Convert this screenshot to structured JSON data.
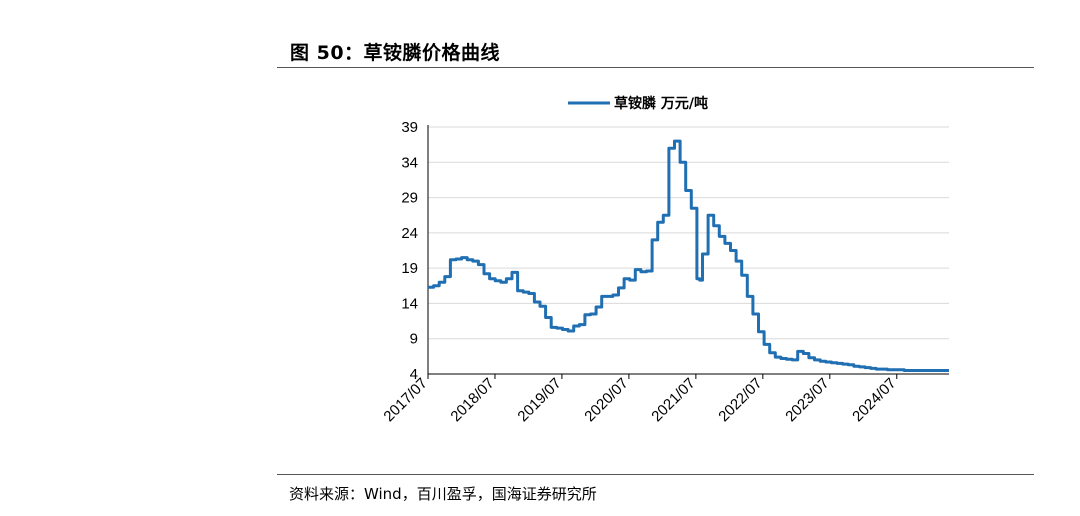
{
  "header": {
    "title": "图 50：草铵膦价格曲线"
  },
  "footer": {
    "source": "资料来源：Wind，百川盈孚，国海证券研究所"
  },
  "chart_data": {
    "type": "line",
    "title": "",
    "xlabel": "",
    "ylabel": "",
    "ylim": [
      4,
      39
    ],
    "yticks": [
      4,
      9,
      14,
      19,
      24,
      29,
      34,
      39
    ],
    "xticks": [
      "2017/07",
      "2018/07",
      "2019/07",
      "2020/07",
      "2021/07",
      "2022/07",
      "2023/07",
      "2024/07"
    ],
    "grid": "horizontal",
    "legend": "top-center",
    "series": [
      {
        "name": "草铵膦 万元/吨",
        "color": "#1f6fb2",
        "x": [
          0,
          1,
          2,
          3,
          4,
          5,
          6,
          7,
          8,
          9,
          10,
          11,
          12,
          13,
          14,
          15,
          16,
          17,
          18,
          19,
          20,
          21,
          22,
          23,
          24,
          25,
          26,
          27,
          28,
          29,
          30,
          31,
          32,
          33,
          34,
          35,
          36,
          37,
          38,
          39,
          40,
          41,
          42,
          43,
          44,
          45,
          46,
          47,
          48,
          48.5,
          49,
          50,
          51,
          52,
          53,
          54,
          55,
          56,
          57,
          58,
          59,
          60,
          61,
          62,
          63,
          64,
          65,
          66,
          67,
          68,
          69,
          70,
          71,
          72,
          73,
          74,
          75,
          76,
          77,
          78,
          79,
          80,
          81,
          82,
          83,
          84,
          85,
          86,
          87,
          88,
          89,
          90,
          91,
          92,
          93
        ],
        "y": [
          16.3,
          16.5,
          17.0,
          17.8,
          20.2,
          20.3,
          20.5,
          20.2,
          20.0,
          19.5,
          18.2,
          17.5,
          17.2,
          17.0,
          17.5,
          18.4,
          15.8,
          15.6,
          15.4,
          14.2,
          13.6,
          12.0,
          10.6,
          10.5,
          10.3,
          10.1,
          10.8,
          11.0,
          12.4,
          12.5,
          13.5,
          15.0,
          15.0,
          15.2,
          16.2,
          17.5,
          17.3,
          18.8,
          18.5,
          18.6,
          23.0,
          25.5,
          26.5,
          36.0,
          37.0,
          34.0,
          30.0,
          27.5,
          17.5,
          17.3,
          21.0,
          26.5,
          25.0,
          23.5,
          22.5,
          21.5,
          20.0,
          18.0,
          15.0,
          12.5,
          10.0,
          8.2,
          7.0,
          6.4,
          6.2,
          6.1,
          6.0,
          7.2,
          6.9,
          6.3,
          6.0,
          5.8,
          5.7,
          5.6,
          5.5,
          5.4,
          5.3,
          5.1,
          5.0,
          4.9,
          4.8,
          4.7,
          4.7,
          4.6,
          4.6,
          4.6,
          4.5,
          4.5,
          4.5,
          4.5,
          4.5,
          4.5,
          4.5,
          4.5,
          4.5
        ]
      }
    ]
  }
}
